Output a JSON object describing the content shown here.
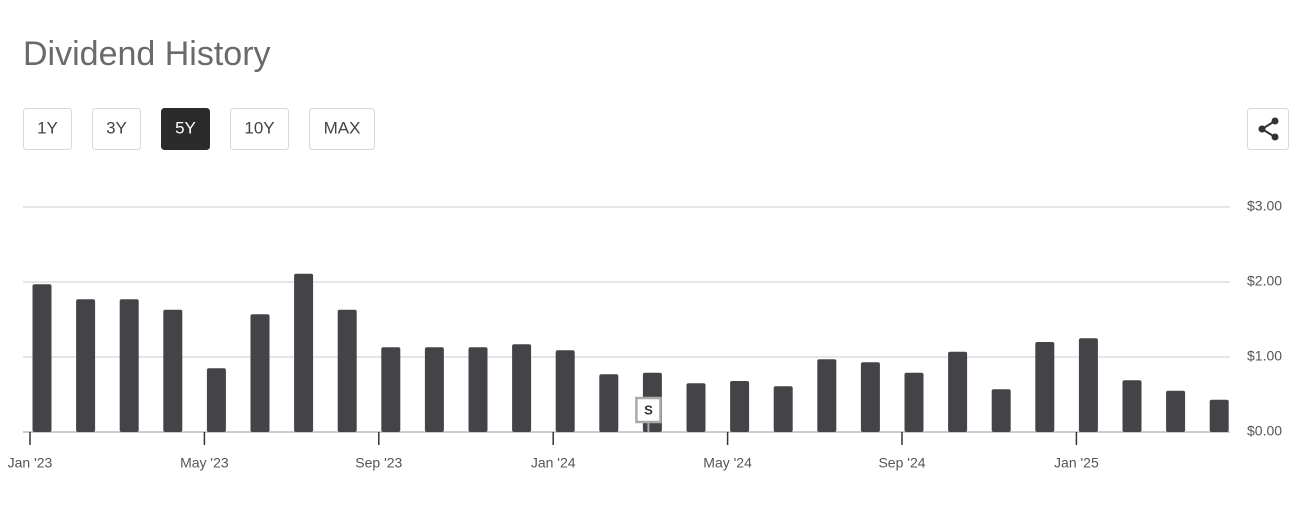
{
  "header": {
    "title": "Dividend History"
  },
  "range_buttons": [
    "1Y",
    "3Y",
    "5Y",
    "10Y",
    "MAX"
  ],
  "active_range": "5Y",
  "chart_data": {
    "type": "bar",
    "color": "#444448",
    "grid": true,
    "x": [
      "2023-01",
      "2023-02",
      "2023-03",
      "2023-04",
      "2023-05",
      "2023-06",
      "2023-07",
      "2023-08",
      "2023-09",
      "2023-10",
      "2023-11",
      "2023-12",
      "2024-01",
      "2024-02",
      "2024-03",
      "2024-04",
      "2024-05",
      "2024-06",
      "2024-07",
      "2024-08",
      "2024-09",
      "2024-10",
      "2024-11",
      "2024-12",
      "2025-01",
      "2025-02",
      "2025-03",
      "2025-04"
    ],
    "values": [
      1.97,
      1.77,
      1.77,
      1.63,
      0.85,
      1.57,
      2.11,
      1.63,
      1.13,
      1.13,
      1.13,
      1.17,
      1.09,
      0.77,
      0.79,
      0.65,
      0.68,
      0.61,
      0.97,
      0.93,
      0.79,
      1.07,
      0.57,
      1.2,
      1.25,
      0.69,
      0.55,
      0.43
    ],
    "ylim": [
      0,
      3
    ],
    "yticks": [
      {
        "value": 0,
        "label": "$0.00"
      },
      {
        "value": 1,
        "label": "$1.00"
      },
      {
        "value": 2,
        "label": "$2.00"
      },
      {
        "value": 3,
        "label": "$3.00"
      }
    ],
    "xticks": [
      {
        "value": "2023-01",
        "label": "Jan '23"
      },
      {
        "value": "2023-05",
        "label": "May '23"
      },
      {
        "value": "2023-09",
        "label": "Sep '23"
      },
      {
        "value": "2024-01",
        "label": "Jan '24"
      },
      {
        "value": "2024-05",
        "label": "May '24"
      },
      {
        "value": "2024-09",
        "label": "Sep '24"
      },
      {
        "value": "2025-01",
        "label": "Jan '25"
      }
    ],
    "annotations": [
      {
        "x": "2024-03",
        "text": "S"
      }
    ]
  }
}
